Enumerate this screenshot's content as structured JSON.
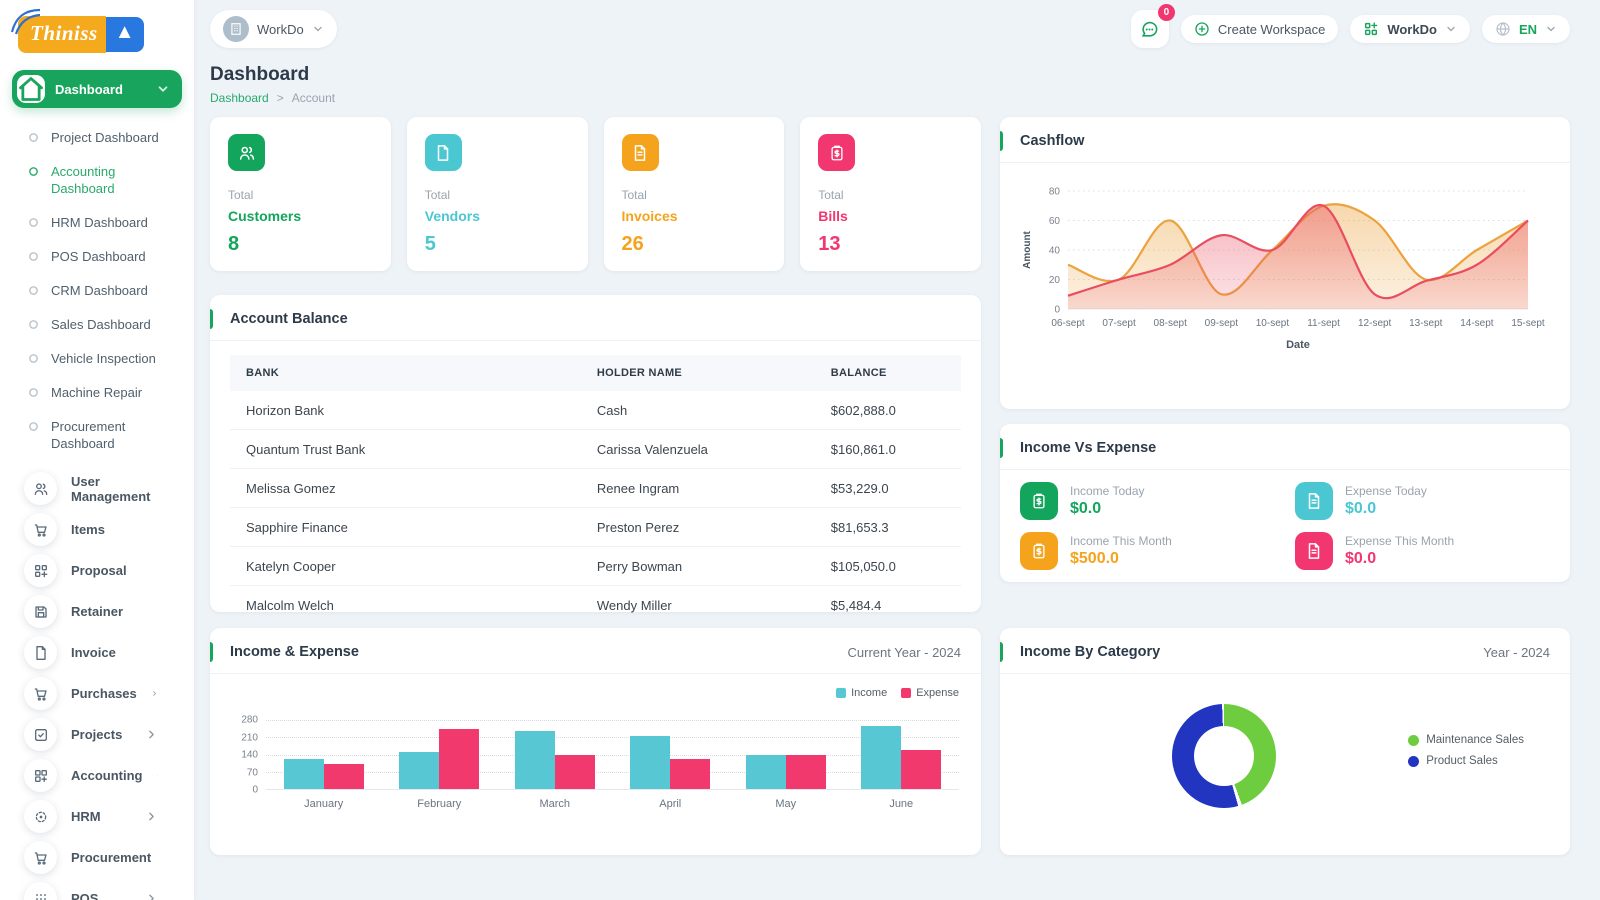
{
  "logo": {
    "text": "Thiniss",
    "badge": "A"
  },
  "topbar": {
    "workspace_pill": {
      "label": "WorkDo"
    },
    "messages_badge": "0",
    "create_workspace_label": "Create Workspace",
    "workdo_menu_label": "WorkDo",
    "language_label": "EN"
  },
  "page": {
    "title": "Dashboard",
    "breadcrumb": {
      "link": "Dashboard",
      "separator": ">",
      "current": "Account"
    }
  },
  "sidebar": {
    "dashboard_label": "Dashboard",
    "submenu": [
      {
        "label": "Project Dashboard",
        "active": false
      },
      {
        "label": "Accounting Dashboard",
        "active": true
      },
      {
        "label": "HRM Dashboard",
        "active": false
      },
      {
        "label": "POS Dashboard",
        "active": false
      },
      {
        "label": "CRM Dashboard",
        "active": false
      },
      {
        "label": "Sales Dashboard",
        "active": false
      },
      {
        "label": "Vehicle Inspection",
        "active": false
      },
      {
        "label": "Machine Repair",
        "active": false
      },
      {
        "label": "Procurement Dashboard",
        "active": false
      }
    ],
    "items": [
      {
        "label": "User Management",
        "icon": "users",
        "chevron": true
      },
      {
        "label": "Items",
        "icon": "cart",
        "chevron": false
      },
      {
        "label": "Proposal",
        "icon": "proposal",
        "chevron": false
      },
      {
        "label": "Retainer",
        "icon": "save",
        "chevron": false
      },
      {
        "label": "Invoice",
        "icon": "file",
        "chevron": false
      },
      {
        "label": "Purchases",
        "icon": "cart",
        "chevron": true
      },
      {
        "label": "Projects",
        "icon": "check-square",
        "chevron": true
      },
      {
        "label": "Accounting",
        "icon": "grid-plus",
        "chevron": true
      },
      {
        "label": "HRM",
        "icon": "crosshair",
        "chevron": true
      },
      {
        "label": "Procurement",
        "icon": "cart",
        "chevron": true
      },
      {
        "label": "POS",
        "icon": "pos-grid",
        "chevron": true
      }
    ]
  },
  "stats": [
    {
      "label1": "Total",
      "label2": "Customers",
      "value": "8",
      "color": "#13a55c",
      "icon": "users"
    },
    {
      "label1": "Total",
      "label2": "Vendors",
      "value": "5",
      "color": "#4bc7d2",
      "icon": "file"
    },
    {
      "label1": "Total",
      "label2": "Invoices",
      "value": "26",
      "color": "#f5a31c",
      "icon": "file-invoice"
    },
    {
      "label1": "Total",
      "label2": "Bills",
      "value": "13",
      "color": "#f2366f",
      "icon": "clipboard-dollar"
    }
  ],
  "account_balance": {
    "title": "Account Balance",
    "columns": [
      "BANK",
      "HOLDER NAME",
      "BALANCE"
    ],
    "rows": [
      {
        "bank": "Horizon Bank",
        "holder": "Cash",
        "balance": "$602,888.0"
      },
      {
        "bank": "Quantum Trust Bank",
        "holder": "Carissa Valenzuela",
        "balance": "$160,861.0"
      },
      {
        "bank": "Melissa Gomez",
        "holder": "Renee Ingram",
        "balance": "$53,229.0"
      },
      {
        "bank": "Sapphire Finance",
        "holder": "Preston Perez",
        "balance": "$81,653.3"
      },
      {
        "bank": "Katelyn Cooper",
        "holder": "Perry Bowman",
        "balance": "$105,050.0"
      },
      {
        "bank": "Malcolm Welch",
        "holder": "Wendy Miller",
        "balance": "$5,484.4"
      }
    ]
  },
  "income_vs_expense": {
    "title": "Income Vs Expense",
    "items": [
      {
        "label": "Income Today",
        "value": "$0.0",
        "color": "#13a55c",
        "icon": "clipboard-dollar"
      },
      {
        "label": "Expense Today",
        "value": "$0.0",
        "color": "#4bc7d2",
        "icon": "file-invoice"
      },
      {
        "label": "Income This Month",
        "value": "$500.0",
        "color": "#f5a31c",
        "icon": "clipboard-dollar"
      },
      {
        "label": "Expense This Month",
        "value": "$0.0",
        "color": "#f2366f",
        "icon": "file-invoice"
      }
    ]
  },
  "chart_data": [
    {
      "type": "area",
      "title": "Cashflow",
      "xlabel": "Date",
      "ylabel": "Amount",
      "x": [
        "06-sept",
        "07-sept",
        "08-sept",
        "09-sept",
        "10-sept",
        "11-sept",
        "12-sept",
        "13-sept",
        "14-sept",
        "15-sept"
      ],
      "ylim": [
        0,
        80
      ],
      "yticks": [
        0,
        20,
        40,
        60,
        80
      ],
      "grid": "dotted",
      "legend": "none",
      "series": [
        {
          "name": "series-orange",
          "color": "#eca23d",
          "values": [
            30,
            20,
            60,
            10,
            40,
            70,
            60,
            20,
            40,
            60
          ]
        },
        {
          "name": "series-red",
          "color": "#e94d60",
          "values": [
            9,
            20,
            30,
            50,
            40,
            70,
            10,
            19,
            30,
            60
          ]
        }
      ]
    },
    {
      "type": "bar",
      "title": "Income & Expense",
      "subtitle": "Current Year - 2024",
      "categories": [
        "January",
        "February",
        "March",
        "April",
        "May",
        "June"
      ],
      "ylim": [
        0,
        280
      ],
      "yticks": [
        0,
        70,
        140,
        210,
        280
      ],
      "grid": "dotted",
      "legend_position": "top-right",
      "series": [
        {
          "name": "Income",
          "color": "#57c7d4",
          "values": [
            120,
            150,
            235,
            215,
            140,
            255
          ]
        },
        {
          "name": "Expense",
          "color": "#f2396e",
          "values": [
            100,
            245,
            140,
            120,
            140,
            158
          ]
        }
      ]
    },
    {
      "type": "pie",
      "title": "Income By Category",
      "subtitle": "Year - 2024",
      "donut": true,
      "labels": [
        "Maintenance Sales",
        "Product Sales"
      ],
      "values": [
        45,
        55
      ],
      "colors": [
        "#6ecd3e",
        "#2135c1"
      ],
      "legend_position": "right"
    }
  ]
}
